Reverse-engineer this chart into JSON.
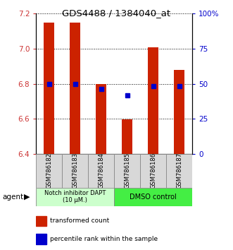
{
  "title": "GDS4488 / 1384040_at",
  "samples": [
    "GSM786182",
    "GSM786183",
    "GSM786184",
    "GSM786185",
    "GSM786186",
    "GSM786187"
  ],
  "bar_bottoms": [
    6.4,
    6.4,
    6.4,
    6.4,
    6.4,
    6.4
  ],
  "bar_tops": [
    7.15,
    7.15,
    6.8,
    6.595,
    7.01,
    6.88
  ],
  "percentile_values": [
    6.8,
    6.8,
    6.77,
    6.735,
    6.785,
    6.785
  ],
  "ylim": [
    6.4,
    7.2
  ],
  "yticks_left": [
    6.4,
    6.6,
    6.8,
    7.0,
    7.2
  ],
  "yticks_right": [
    0,
    25,
    50,
    75,
    100
  ],
  "bar_color": "#cc2200",
  "percentile_color": "#0000cc",
  "group1_label": "Notch inhibitor DAPT\n(10 μM.)",
  "group2_label": "DMSO control",
  "group1_indices": [
    0,
    1,
    2
  ],
  "group2_indices": [
    3,
    4,
    5
  ],
  "group1_bg": "#ccffcc",
  "group2_bg": "#44ee44",
  "agent_label": "agent",
  "legend_red": "transformed count",
  "legend_blue": "percentile rank within the sample",
  "bar_width": 0.4
}
